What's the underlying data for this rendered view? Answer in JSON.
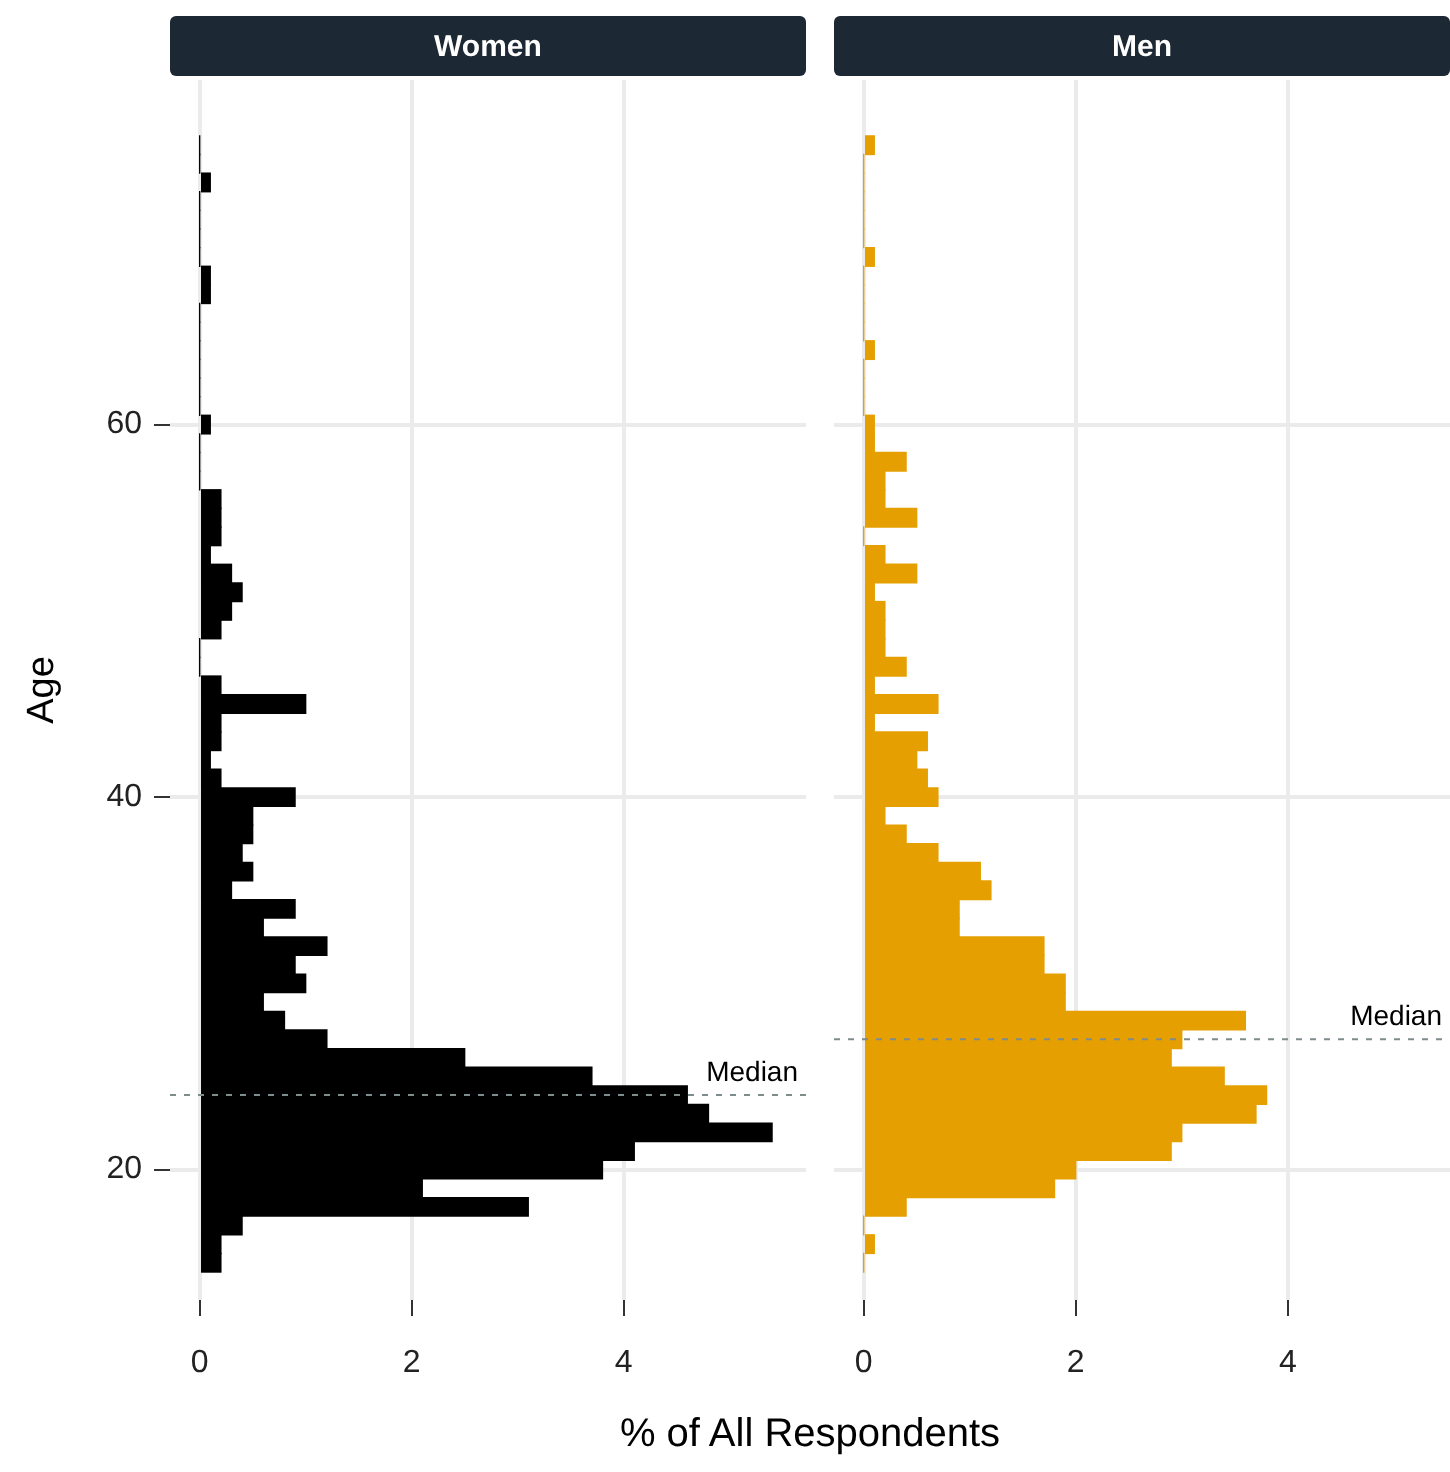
{
  "chart_data": [
    {
      "type": "histogram",
      "orientation": "horizontal",
      "title": "Women",
      "ylabel": "Age",
      "xlabel": "% of All Respondents",
      "color": "#000000",
      "bins": [
        14.5,
        15.5,
        16.5,
        17.5,
        18.5,
        19.5,
        20.5,
        21.5,
        22.5,
        23.5,
        24.5,
        25.5,
        26.5,
        27.5,
        28.5,
        29.5,
        30.5,
        31.5,
        32.5,
        33.5,
        34.5,
        35.5,
        36.5,
        37.5,
        38.5,
        39.5,
        40.5,
        41.5,
        42.5,
        43.5,
        44.5,
        45.5,
        46.5,
        47.5,
        48.5,
        49.5,
        50.5,
        51.5,
        52.5,
        53.5,
        54.5,
        55.5,
        56.5,
        57.5,
        58.5,
        59.5,
        60.5,
        61.5,
        62.5,
        63.5,
        64.5,
        65.5,
        66.5,
        67.5,
        68.5,
        69.5,
        70.5,
        71.5,
        72.5,
        73.5,
        74.5,
        75.5
      ],
      "values": [
        0.2,
        0.2,
        0.4,
        3.1,
        2.1,
        3.8,
        4.1,
        5.4,
        4.8,
        4.6,
        3.7,
        2.5,
        1.2,
        0.8,
        0.6,
        1.0,
        0.9,
        1.2,
        0.6,
        0.9,
        0.3,
        0.5,
        0.4,
        0.5,
        0.5,
        0.9,
        0.2,
        0.1,
        0.2,
        0.2,
        1.0,
        0.2,
        0,
        0,
        0.2,
        0.3,
        0.4,
        0.3,
        0.1,
        0.2,
        0.2,
        0.2,
        0,
        0,
        0,
        0.1,
        0,
        0,
        0,
        0,
        0,
        0,
        0.1,
        0.1,
        0,
        0,
        0,
        0,
        0.1,
        0,
        0
      ],
      "xlim": [
        -0.28,
        5.72
      ],
      "xticks": [
        0,
        2,
        4
      ],
      "ylim": [
        13,
        78.5
      ],
      "yticks": [
        20,
        40,
        60
      ],
      "grid": true,
      "ref_lines": [
        {
          "axis": "y",
          "value": 24,
          "label": "Median",
          "line_style": "dashed",
          "color": "#7f8c8d"
        }
      ]
    },
    {
      "type": "histogram",
      "orientation": "horizontal",
      "title": "Men",
      "color": "#e69f00",
      "bins": [
        14.5,
        15.5,
        16.5,
        17.5,
        18.5,
        19.5,
        20.5,
        21.5,
        22.5,
        23.5,
        24.5,
        25.5,
        26.5,
        27.5,
        28.5,
        29.5,
        30.5,
        31.5,
        32.5,
        33.5,
        34.5,
        35.5,
        36.5,
        37.5,
        38.5,
        39.5,
        40.5,
        41.5,
        42.5,
        43.5,
        44.5,
        45.5,
        46.5,
        47.5,
        48.5,
        49.5,
        50.5,
        51.5,
        52.5,
        53.5,
        54.5,
        55.5,
        56.5,
        57.5,
        58.5,
        59.5,
        60.5,
        61.5,
        62.5,
        63.5,
        64.5,
        65.5,
        66.5,
        67.5,
        68.5,
        69.5,
        70.5,
        71.5,
        72.5,
        73.5,
        74.5,
        75.5
      ],
      "values": [
        0,
        0.1,
        0,
        0.4,
        1.8,
        2.0,
        2.9,
        3.0,
        3.7,
        3.8,
        3.4,
        2.9,
        3.0,
        3.6,
        1.9,
        1.9,
        1.7,
        1.7,
        0.9,
        0.9,
        1.2,
        1.1,
        0.7,
        0.4,
        0.2,
        0.7,
        0.6,
        0.5,
        0.6,
        0.1,
        0.7,
        0.1,
        0.4,
        0.2,
        0.2,
        0.2,
        0.1,
        0.5,
        0.2,
        0,
        0.5,
        0.2,
        0.2,
        0.4,
        0.1,
        0.1,
        0,
        0,
        0,
        0.1,
        0,
        0,
        0,
        0,
        0.1,
        0,
        0,
        0,
        0,
        0,
        0.1
      ],
      "xlim": [
        -0.28,
        5.53
      ],
      "xticks": [
        0,
        2,
        4
      ],
      "ylim": [
        13,
        78.5
      ],
      "yticks": [
        20,
        40,
        60
      ],
      "grid": true,
      "tick_labels": "x",
      "ref_lines": [
        {
          "axis": "y",
          "value": 27,
          "label": "Median",
          "line_style": "dashed",
          "color": "#7f8c8d"
        }
      ]
    }
  ]
}
